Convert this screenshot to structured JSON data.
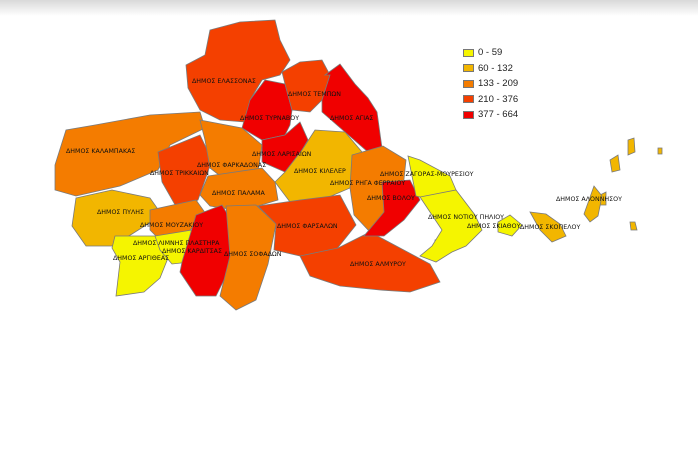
{
  "legend": [
    {
      "label": "0 - 59",
      "color": "#f5f500"
    },
    {
      "label": "60 - 132",
      "color": "#f2b600"
    },
    {
      "label": "133 - 209",
      "color": "#f47c00"
    },
    {
      "label": "210 - 376",
      "color": "#f44000"
    },
    {
      "label": "377 - 664",
      "color": "#f00000"
    }
  ],
  "regions": [
    {
      "name": "ΔΗΜΟΣ ΕΛΑΣΣΟΝΑΣ",
      "class": 3
    },
    {
      "name": "ΔΗΜΟΣ ΤΥΡΝΑΒΟΥ",
      "class": 4
    },
    {
      "name": "ΔΗΜΟΣ ΤΕΜΠΩΝ",
      "class": 3
    },
    {
      "name": "ΔΗΜΟΣ ΑΓΙΑΣ",
      "class": 4
    },
    {
      "name": "ΔΗΜΟΣ ΛΑΡΙΣΑΙΩΝ",
      "class": 4
    },
    {
      "name": "ΔΗΜΟΣ ΚΙΛΕΛΕΡ",
      "class": 1
    },
    {
      "name": "ΔΗΜΟΣ ΚΑΛΑΜΠΑΚΑΣ",
      "class": 2
    },
    {
      "name": "ΔΗΜΟΣ ΤΡΙΚΚΑΙΩΝ",
      "class": 3
    },
    {
      "name": "ΔΗΜΟΣ ΦΑΡΚΑΔΟΝΑΣ",
      "class": 2
    },
    {
      "name": "ΔΗΜΟΣ ΠΑΛΑΜΑ",
      "class": 2
    },
    {
      "name": "ΔΗΜΟΣ ΠΥΛΗΣ",
      "class": 1
    },
    {
      "name": "ΔΗΜΟΣ ΜΟΥΖΑΚΙΟΥ",
      "class": 2
    },
    {
      "name": "ΔΗΜΟΣ ΑΡΓΙΘΕΑΣ",
      "class": 0
    },
    {
      "name": "ΔΗΜΟΣ ΛΙΜΝΗΣ ΠΛΑΣΤΗΡΑ",
      "class": 0
    },
    {
      "name": "ΔΗΜΟΣ ΚΑΡΔΙΤΣΑΣ",
      "class": 4
    },
    {
      "name": "ΔΗΜΟΣ ΣΟΦΑΔΩΝ",
      "class": 2
    },
    {
      "name": "ΔΗΜΟΣ ΦΑΡΣΑΛΩΝ",
      "class": 3
    },
    {
      "name": "ΔΗΜΟΣ ΑΛΜΥΡΟΥ",
      "class": 3
    },
    {
      "name": "ΔΗΜΟΣ ΡΗΓΑ ΦΕΡΡΑΙΟΥ",
      "class": 2
    },
    {
      "name": "ΔΗΜΟΣ ΒΟΛΟΥ",
      "class": 4
    },
    {
      "name": "ΔΗΜΟΣ ΖΑΓΟΡΑΣ-ΜΟΥΡΕΣΙΟΥ",
      "class": 0
    },
    {
      "name": "ΔΗΜΟΣ ΝΟΤΙΟΥ ΠΗΛΙΟΥ",
      "class": 0
    },
    {
      "name": "ΔΗΜΟΣ ΣΚΙΑΘΟΥ",
      "class": 0
    },
    {
      "name": "ΔΗΜΟΣ ΣΚΟΠΕΛΟΥ",
      "class": 1
    },
    {
      "name": "ΔΗΜΟΣ ΑΛΟΝΝΗΣΟΥ",
      "class": 1
    }
  ]
}
